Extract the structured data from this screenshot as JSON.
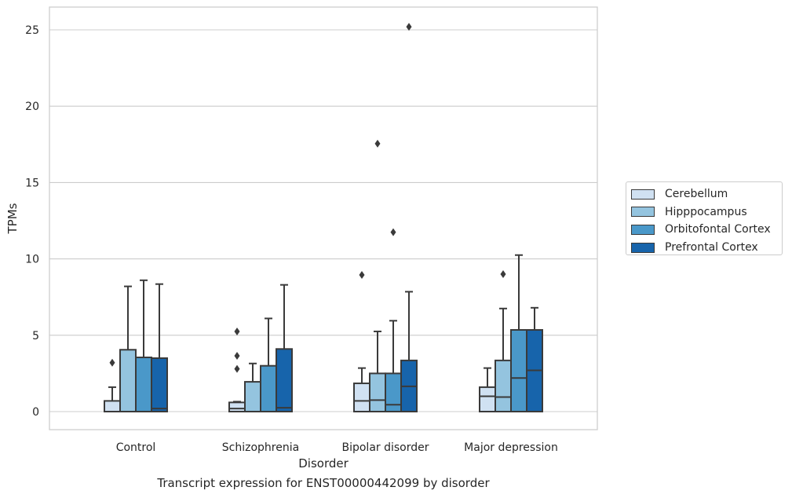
{
  "caption": "Transcript expression for ENST00000442099 by disorder",
  "chart_data": {
    "type": "box",
    "title": "",
    "xlabel": "Disorder",
    "ylabel": "TPMs",
    "ylim": [
      -1.2,
      26.5
    ],
    "yticks": [
      0,
      5,
      10,
      15,
      20,
      25
    ],
    "grid": "horizontal",
    "legend_position": "right-outside",
    "categories": [
      "Control",
      "Schizophrenia",
      "Bipolar disorder",
      "Major depression"
    ],
    "series": [
      {
        "name": "Cerebellum",
        "color": "#d0e1f2",
        "boxes": [
          {
            "whislo": 0,
            "q1": 0,
            "med": 0,
            "q3": 0.7,
            "whishi": 1.6,
            "fliers": [
              3.2
            ]
          },
          {
            "whislo": 0,
            "q1": 0,
            "med": 0.2,
            "q3": 0.6,
            "whishi": 0.65,
            "fliers": [
              2.8,
              3.65,
              5.25
            ]
          },
          {
            "whislo": 0,
            "q1": 0,
            "med": 0.7,
            "q3": 1.85,
            "whishi": 2.85,
            "fliers": [
              8.95
            ]
          },
          {
            "whislo": 0,
            "q1": 0,
            "med": 1.0,
            "q3": 1.6,
            "whishi": 2.85,
            "fliers": []
          }
        ]
      },
      {
        "name": "Hipppocampus",
        "color": "#94c4df",
        "boxes": [
          {
            "whislo": 0,
            "q1": 0,
            "med": 0,
            "q3": 4.05,
            "whishi": 8.2,
            "fliers": []
          },
          {
            "whislo": 0,
            "q1": 0,
            "med": 0,
            "q3": 1.95,
            "whishi": 3.15,
            "fliers": []
          },
          {
            "whislo": 0,
            "q1": 0,
            "med": 0.75,
            "q3": 2.5,
            "whishi": 5.25,
            "fliers": [
              17.55
            ]
          },
          {
            "whislo": 0,
            "q1": 0,
            "med": 0.95,
            "q3": 3.35,
            "whishi": 6.75,
            "fliers": [
              9.0
            ]
          }
        ]
      },
      {
        "name": "Orbitofontal Cortex",
        "color": "#4a98c9",
        "boxes": [
          {
            "whislo": 0,
            "q1": 0,
            "med": 0,
            "q3": 3.55,
            "whishi": 8.6,
            "fliers": []
          },
          {
            "whislo": 0,
            "q1": 0,
            "med": 0,
            "q3": 3.0,
            "whishi": 6.1,
            "fliers": []
          },
          {
            "whislo": 0,
            "q1": 0,
            "med": 0.45,
            "q3": 2.5,
            "whishi": 5.95,
            "fliers": [
              11.75
            ]
          },
          {
            "whislo": 0,
            "q1": 0,
            "med": 2.2,
            "q3": 5.35,
            "whishi": 10.25,
            "fliers": []
          }
        ]
      },
      {
        "name": "Prefrontal Cortex",
        "color": "#1764ab",
        "boxes": [
          {
            "whislo": 0,
            "q1": 0,
            "med": 0.2,
            "q3": 3.5,
            "whishi": 8.35,
            "fliers": []
          },
          {
            "whislo": 0,
            "q1": 0,
            "med": 0.25,
            "q3": 4.1,
            "whishi": 8.3,
            "fliers": []
          },
          {
            "whislo": 0,
            "q1": 0,
            "med": 1.65,
            "q3": 3.35,
            "whishi": 7.85,
            "fliers": [
              25.2
            ]
          },
          {
            "whislo": 0,
            "q1": 0,
            "med": 2.7,
            "q3": 5.35,
            "whishi": 6.8,
            "fliers": []
          }
        ]
      }
    ]
  }
}
